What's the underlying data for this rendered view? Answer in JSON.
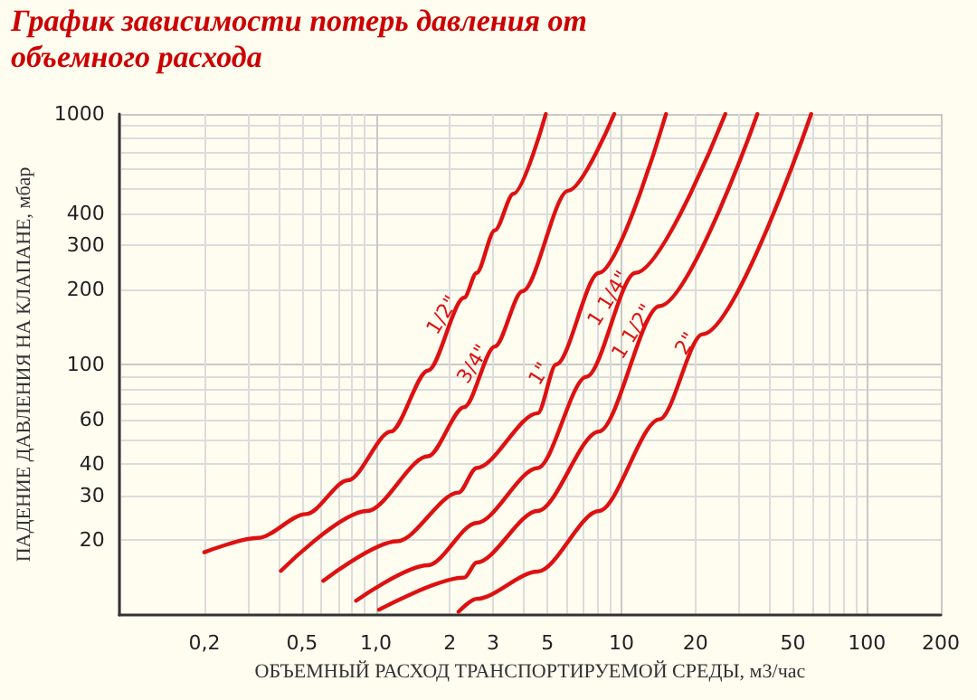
{
  "chart_data": {
    "type": "line",
    "title": "График  зависимости потерь давления от  объемного расхода",
    "xlabel": "ОБЪЕМНЫЙ РАСХОД ТРАНСПОРТИРУЕМОЙ СРЕДЫ, м3/час",
    "ylabel": "ПАДЕНИЕ ДАВЛЕНИЯ НА КЛАПАНЕ, мбар",
    "log": "xy",
    "grid": true,
    "legend": false,
    "marker": "none",
    "line_style": "solid",
    "xlim": [
      0.09,
      200
    ],
    "ylim": [
      10,
      1000
    ],
    "xticks": [
      {
        "value": 0.2,
        "label": "0,2"
      },
      {
        "value": 0.5,
        "label": "0,5"
      },
      {
        "value": 1,
        "label": "1,0"
      },
      2,
      3,
      5,
      10,
      20,
      50,
      100,
      200
    ],
    "yticks": [
      20,
      30,
      40,
      60,
      100,
      200,
      300,
      400,
      1000
    ],
    "series": [
      {
        "name": "1/2\"",
        "color": "#dd1111",
        "x": [
          0.2,
          0.33,
          0.52,
          0.77,
          1.15,
          1.63,
          2.29,
          2.57,
          3.05,
          3.63,
          4.92
        ],
        "values": [
          17.8,
          20.3,
          25.3,
          34.5,
          54,
          94.6,
          185,
          232,
          343,
          480,
          1000
        ]
      },
      {
        "name": "3/4\"",
        "color": "#dd1111",
        "x": [
          0.41,
          0.92,
          1.63,
          2.29,
          3.05,
          3.95,
          6.07,
          9.35
        ],
        "values": [
          15,
          26,
          43,
          67.6,
          118,
          196,
          494,
          1000
        ]
      },
      {
        "name": "1\"",
        "color": "#dd1111",
        "x": [
          0.61,
          1.22,
          2.17,
          2.57,
          4.56,
          5.42,
          8.1,
          15.2
        ],
        "values": [
          13.7,
          19.7,
          30.8,
          38.6,
          63.9,
          100,
          232,
          1000
        ]
      },
      {
        "name": "1 1/4\"",
        "color": "#dd1111",
        "x": [
          0.83,
          1.63,
          2.57,
          4.56,
          7.2,
          11.4,
          26.5
        ],
        "values": [
          11.4,
          15.8,
          23.3,
          38.6,
          89.3,
          232,
          1000
        ]
      },
      {
        "name": "1 1/2\"",
        "color": "#dd1111",
        "x": [
          1.03,
          2.29,
          2.57,
          4.56,
          8.1,
          14.3,
          35.8
        ],
        "values": [
          10.5,
          14.1,
          16.2,
          26,
          54,
          171,
          1000
        ]
      },
      {
        "name": "2\"",
        "color": "#dd1111",
        "x": [
          2.17,
          2.57,
          4.56,
          8.1,
          14.3,
          21.4,
          59.3
        ],
        "values": [
          10.3,
          11.6,
          14.9,
          26,
          60.4,
          132,
          1000
        ]
      }
    ]
  }
}
